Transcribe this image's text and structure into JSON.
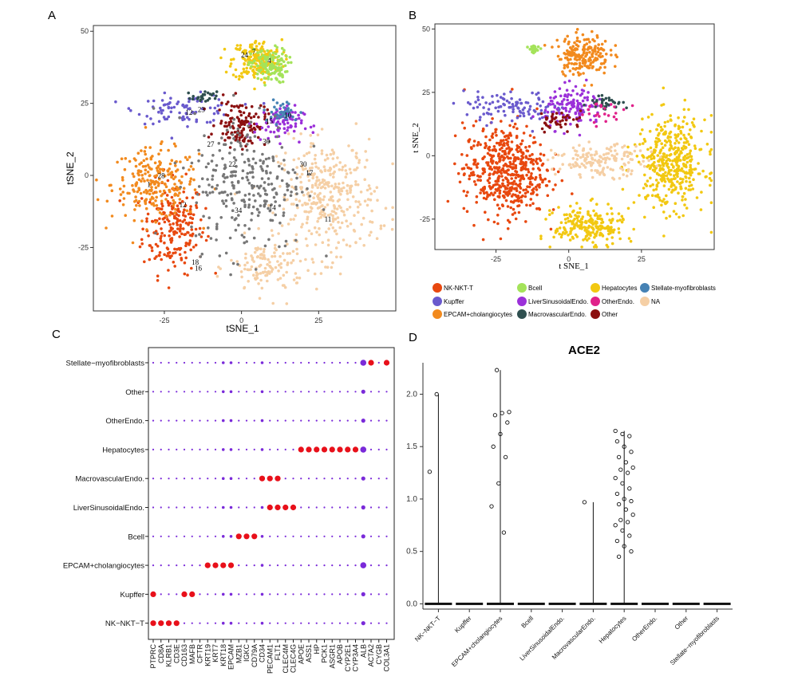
{
  "chart_data": [
    {
      "panel": "A",
      "type": "scatter",
      "xlabel": "tSNE_1",
      "ylabel": "tSNE_2",
      "xticks": [
        -25,
        0,
        25
      ],
      "yticks": [
        50,
        25,
        0,
        -25
      ],
      "xlim": [
        -48,
        50
      ],
      "ylim": [
        -47,
        52
      ],
      "cluster_labels": [
        {
          "label": "24",
          "x": 1,
          "y": 41
        },
        {
          "label": "7",
          "x": 4,
          "y": 42
        },
        {
          "label": "4",
          "x": 9,
          "y": 39
        },
        {
          "label": "12",
          "x": -17,
          "y": 21
        },
        {
          "label": "23",
          "x": -13,
          "y": 22
        },
        {
          "label": "15",
          "x": 9,
          "y": 18
        },
        {
          "label": "10",
          "x": 15,
          "y": 20
        },
        {
          "label": "27",
          "x": -10,
          "y": 10
        },
        {
          "label": "30",
          "x": 8,
          "y": 11
        },
        {
          "label": "22",
          "x": -3,
          "y": 3
        },
        {
          "label": "30",
          "x": 20,
          "y": 3
        },
        {
          "label": "17",
          "x": 22,
          "y": 0
        },
        {
          "label": "1",
          "x": -30,
          "y": -4
        },
        {
          "label": "28",
          "x": -26,
          "y": -1
        },
        {
          "label": "12",
          "x": -19,
          "y": -11
        },
        {
          "label": "34",
          "x": -1,
          "y": -13
        },
        {
          "label": "14",
          "x": 10,
          "y": -12
        },
        {
          "label": "11",
          "x": 28,
          "y": -16
        },
        {
          "label": "18",
          "x": -15,
          "y": -31
        },
        {
          "label": "16",
          "x": -14,
          "y": -33
        }
      ],
      "clusters": [
        {
          "group": "NK-NKT-T",
          "points": 220,
          "cx": -22,
          "cy": -18,
          "sx": 5,
          "sy": 8
        },
        {
          "group": "EPCAM+cholangiocytes",
          "points": 230,
          "cx": -28,
          "cy": -3,
          "sx": 7,
          "sy": 6
        },
        {
          "group": "Kupffer",
          "points": 90,
          "cx": -18,
          "cy": 23,
          "sx": 8,
          "sy": 2.5
        },
        {
          "group": "Hepatocytes",
          "points": 200,
          "cx": 5,
          "cy": 40,
          "sx": 4,
          "sy": 3.5
        },
        {
          "group": "Bcell",
          "points": 130,
          "cx": 9,
          "cy": 38,
          "sx": 3,
          "sy": 3
        },
        {
          "group": "NA",
          "points": 360,
          "cx": 28,
          "cy": -8,
          "sx": 8,
          "sy": 10
        },
        {
          "group": "NA",
          "points": 120,
          "cx": 8,
          "cy": -32,
          "sx": 6,
          "sy": 5
        },
        {
          "group": "Other",
          "points": 120,
          "cx": 0,
          "cy": 18,
          "sx": 4,
          "sy": 4
        },
        {
          "group": "LiverSinusoidalEndo.",
          "points": 80,
          "cx": 12,
          "cy": 18,
          "sx": 4,
          "sy": 3
        },
        {
          "group": "MacrovascularEndo.",
          "points": 25,
          "cx": -12,
          "cy": 27,
          "sx": 2,
          "sy": 1
        },
        {
          "group": "Stellate-myofibroblasts",
          "points": 40,
          "cx": 13,
          "cy": 22,
          "sx": 3,
          "sy": 2
        },
        {
          "group": "unlabeled",
          "points": 280,
          "cx": 2,
          "cy": -2,
          "sx": 9,
          "sy": 12
        }
      ]
    },
    {
      "panel": "B",
      "type": "scatter",
      "xlabel": "t SNE_1",
      "ylabel": "t SNE_2",
      "xticks": [
        -25,
        0,
        25
      ],
      "yticks": [
        50,
        25,
        0,
        -25
      ],
      "xlim": [
        -46,
        50
      ],
      "ylim": [
        -37,
        52
      ],
      "clusters": [
        {
          "group": "NK-NKT-T",
          "points": 520,
          "cx": -22,
          "cy": -6,
          "sx": 7,
          "sy": 9
        },
        {
          "group": "EPCAM+cholangiocytes",
          "points": 200,
          "cx": 5,
          "cy": 40,
          "sx": 4.5,
          "sy": 4
        },
        {
          "group": "Kupffer",
          "points": 110,
          "cx": -18,
          "cy": 19,
          "sx": 9,
          "sy": 3
        },
        {
          "group": "LiverSinusoidalEndo.",
          "points": 130,
          "cx": 2,
          "cy": 19,
          "sx": 5,
          "sy": 4
        },
        {
          "group": "Hepatocytes",
          "points": 420,
          "cx": 35,
          "cy": -3,
          "sx": 6,
          "sy": 9
        },
        {
          "group": "Hepatocytes",
          "points": 220,
          "cx": 7,
          "cy": -28,
          "sx": 6,
          "sy": 4
        },
        {
          "group": "NA",
          "points": 160,
          "cx": 11,
          "cy": -2,
          "sx": 8,
          "sy": 3
        },
        {
          "group": "MacrovascularEndo.",
          "points": 35,
          "cx": 13,
          "cy": 21,
          "sx": 3,
          "sy": 1.5
        },
        {
          "group": "Bcell",
          "points": 25,
          "cx": -12,
          "cy": 42,
          "sx": 1,
          "sy": 0.7
        },
        {
          "group": "Other",
          "points": 40,
          "cx": -3,
          "cy": 14,
          "sx": 4,
          "sy": 2
        },
        {
          "group": "OtherEndo.",
          "points": 25,
          "cx": 12,
          "cy": 17,
          "sx": 4,
          "sy": 2
        }
      ]
    },
    {
      "panel": "C",
      "type": "dotplot",
      "rows": [
        "Stellate−myofibroblasts",
        "Other",
        "OtherEndo.",
        "Hepatocytes",
        "MacrovascularEndo.",
        "LiverSinusoidalEndo.",
        "Bcell",
        "EPCAM+cholangiocytes",
        "Kupffer",
        "NK−NKT−T"
      ],
      "genes": [
        "PTPRC",
        "CD8A",
        "KLRB1",
        "CD3E",
        "CD163",
        "MAFB",
        "CFTR",
        "KRT19",
        "KRT7",
        "KRT18",
        "EPCAM",
        "MZB1",
        "IGKC",
        "CD79A",
        "CD34",
        "PECAM1",
        "FLT1",
        "CLEC4M",
        "CLEC4G",
        "APOE",
        "ASS1",
        "HP",
        "PCK1",
        "ASGR1",
        "APOB",
        "CYP2E1",
        "CYP3A4",
        "ALB",
        "ACTA2",
        "CYGB",
        "COL3A1"
      ],
      "highlights": [
        {
          "row": "Stellate−myofibroblasts",
          "genes": [
            "ALB",
            "ACTA2",
            "COL3A1"
          ]
        },
        {
          "row": "Hepatocytes",
          "genes": [
            "APOE",
            "ASS1",
            "HP",
            "PCK1",
            "ASGR1",
            "APOB",
            "CYP2E1",
            "CYP3A4",
            "ALB"
          ]
        },
        {
          "row": "MacrovascularEndo.",
          "genes": [
            "CD34",
            "PECAM1",
            "FLT1"
          ]
        },
        {
          "row": "LiverSinusoidalEndo.",
          "genes": [
            "PECAM1",
            "FLT1",
            "CLEC4M",
            "CLEC4G"
          ]
        },
        {
          "row": "Bcell",
          "genes": [
            "MZB1",
            "IGKC",
            "CD79A"
          ]
        },
        {
          "row": "EPCAM+cholangiocytes",
          "genes": [
            "KRT19",
            "KRT7",
            "KRT18",
            "EPCAM",
            "ALB"
          ]
        },
        {
          "row": "Kupffer",
          "genes": [
            "PTPRC",
            "CD163",
            "MAFB"
          ]
        },
        {
          "row": "NK−NKT−T",
          "genes": [
            "PTPRC",
            "CD8A",
            "KLRB1",
            "CD3E"
          ]
        }
      ]
    },
    {
      "panel": "D",
      "type": "violin",
      "title": "ACE2",
      "categories": [
        "NK−NKT−T",
        "Kupffer",
        "EPCAM+cholangiocytes",
        "Bcell",
        "LiverSinusoidalEndo.",
        "MacrovascularEndo.",
        "Hepatocytes",
        "OtherEndo.",
        "Other",
        "Stellate−myofibroblasts"
      ],
      "yticks": [
        "0.0",
        "0.5",
        "1.0",
        "1.5",
        "2.0"
      ],
      "ylim": [
        -0.05,
        2.3
      ],
      "max_values": [
        2.0,
        0.0,
        2.23,
        0.0,
        0.0,
        0.97,
        1.65,
        0.0,
        0.0,
        0.0
      ],
      "points": [
        [
          1.26,
          2.0
        ],
        [],
        [
          0.93,
          1.15,
          1.4,
          1.5,
          1.62,
          1.73,
          1.8,
          1.82,
          1.83,
          2.23,
          0.68
        ],
        [],
        [],
        [
          0.97
        ],
        [
          1.65,
          1.62,
          1.6,
          1.55,
          1.5,
          1.45,
          1.4,
          1.35,
          1.3,
          1.28,
          1.25,
          1.2,
          1.15,
          1.1,
          1.05,
          1.0,
          0.98,
          0.95,
          0.9,
          0.85,
          0.8,
          0.78,
          0.75,
          0.7,
          0.65,
          0.6,
          0.55,
          0.5,
          0.45
        ],
        [],
        [],
        []
      ]
    }
  ],
  "panel_labels": {
    "a": "A",
    "b": "B",
    "c": "C",
    "d": "D"
  },
  "legend": [
    {
      "label": "NK-NKT-T",
      "color": "#e8480f"
    },
    {
      "label": "Kupffer",
      "color": "#6a5acd"
    },
    {
      "label": "EPCAM+cholangiocytes",
      "color": "#f28a1e"
    },
    {
      "label": "Bcell",
      "color": "#a4e35a"
    },
    {
      "label": "LiverSinusoidalEndo.",
      "color": "#9b30d9"
    },
    {
      "label": "MacrovascularEndo.",
      "color": "#2f4f4f"
    },
    {
      "label": "Hepatocytes",
      "color": "#f2c811"
    },
    {
      "label": "OtherEndo.",
      "color": "#e0218a"
    },
    {
      "label": "Other",
      "color": "#8b1010"
    },
    {
      "label": "Stellate-myofibroblasts",
      "color": "#4682b4"
    },
    {
      "label": "NA",
      "color": "#f5cfa5"
    }
  ],
  "colors": {
    "unlabeled": "#777777",
    "dot_low": "#7a2ad9",
    "dot_high": "#e8101a",
    "tan": "#c9b27a"
  }
}
